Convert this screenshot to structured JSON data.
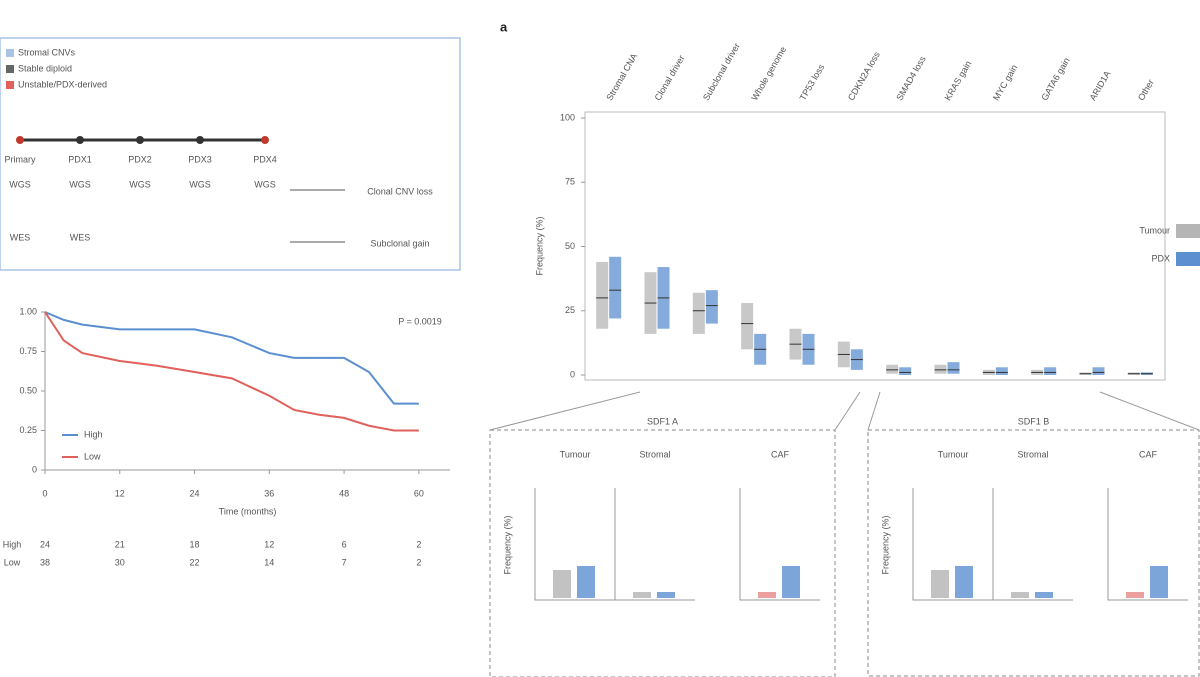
{
  "overview": {
    "legend": [
      "Stromal CNVs",
      "Stable diploid",
      "Unstable/PDX-derived"
    ],
    "nodes": [
      "Primary",
      "PDX1",
      "PDX2",
      "PDX3",
      "PDX4"
    ],
    "row_a": [
      "WGS",
      "WGS",
      "WGS",
      "WGS",
      "WGS"
    ],
    "row_b": [
      "WES",
      "WES"
    ],
    "notes": [
      "Clonal CNV loss",
      "Subclonal gain"
    ]
  },
  "panel_letter": "a",
  "chart_data": [
    {
      "type": "line",
      "annotation": "P = 0.0019",
      "xlabel": "Time (months)",
      "x": [
        0,
        3,
        6,
        12,
        18,
        24,
        30,
        36,
        40,
        44,
        48,
        52,
        56,
        60
      ],
      "series": [
        {
          "name": "High",
          "color": "#5b8fcf",
          "values": [
            1.0,
            0.95,
            0.92,
            0.89,
            0.89,
            0.89,
            0.84,
            0.74,
            0.71,
            0.71,
            0.71,
            0.62,
            0.42,
            0.42
          ]
        },
        {
          "name": "Low",
          "color": "#e0605b",
          "values": [
            1.0,
            0.82,
            0.74,
            0.69,
            0.66,
            0.62,
            0.58,
            0.47,
            0.38,
            0.35,
            0.33,
            0.28,
            0.25,
            0.25
          ]
        }
      ],
      "xlim": [
        0,
        65
      ],
      "xticks": [
        0,
        12,
        24,
        36,
        48,
        60
      ],
      "ylim": [
        0,
        1
      ],
      "yticks": [
        0,
        0.25,
        {
          "value": 0.5,
          "label": "0.50"
        },
        0.75,
        {
          "value": 1,
          "label": "1.00"
        }
      ],
      "risk_table": [
        [
          "High",
          "24",
          "21",
          "18",
          "12",
          "6",
          "2"
        ],
        [
          "Low",
          "38",
          "30",
          "22",
          "14",
          "7",
          "2"
        ]
      ]
    },
    {
      "type": "box",
      "ylabel": "Frequency (%)",
      "categories": [
        "Stromal CNA",
        "Clonal driver",
        "Subclonal driver",
        "Whole genome",
        "TP53 loss",
        "CDKN2A loss",
        "SMAD4 loss",
        "KRAS gain",
        "MYC gain",
        "GATA6 gain",
        "ARID1A",
        "Other"
      ],
      "series": [
        {
          "name": "Tumour",
          "color": "#b5b5b5",
          "values": [
            30,
            28,
            25,
            20,
            12,
            8,
            2,
            2,
            1,
            1,
            0.5,
            0.5
          ],
          "q1": [
            18,
            16,
            16,
            10,
            6,
            3,
            0.5,
            0.5,
            0,
            0,
            0,
            0
          ],
          "q3": [
            44,
            40,
            32,
            28,
            18,
            13,
            4,
            4,
            2,
            2,
            1,
            1
          ]
        },
        {
          "name": "PDX",
          "color": "#5b8fcf",
          "values": [
            33,
            30,
            27,
            10,
            10,
            6,
            1,
            2,
            1,
            1,
            1,
            0.5
          ],
          "q1": [
            22,
            18,
            20,
            4,
            4,
            2,
            0,
            0.5,
            0,
            0,
            0,
            0
          ],
          "q3": [
            46,
            42,
            33,
            16,
            16,
            10,
            3,
            5,
            3,
            3,
            3,
            1
          ]
        }
      ],
      "ylim": [
        0,
        100
      ],
      "yticks": [
        0,
        25,
        50,
        75,
        100
      ]
    }
  ],
  "subpanels": [
    {
      "title": "SDF1 A",
      "groups": [
        "Tumour",
        "Stromal",
        "CAF"
      ],
      "ylabel": "Frequency (%)"
    },
    {
      "title": "SDF1 B",
      "groups": [
        "Tumour",
        "Stromal",
        "CAF"
      ],
      "ylabel": "Frequency (%)"
    }
  ]
}
